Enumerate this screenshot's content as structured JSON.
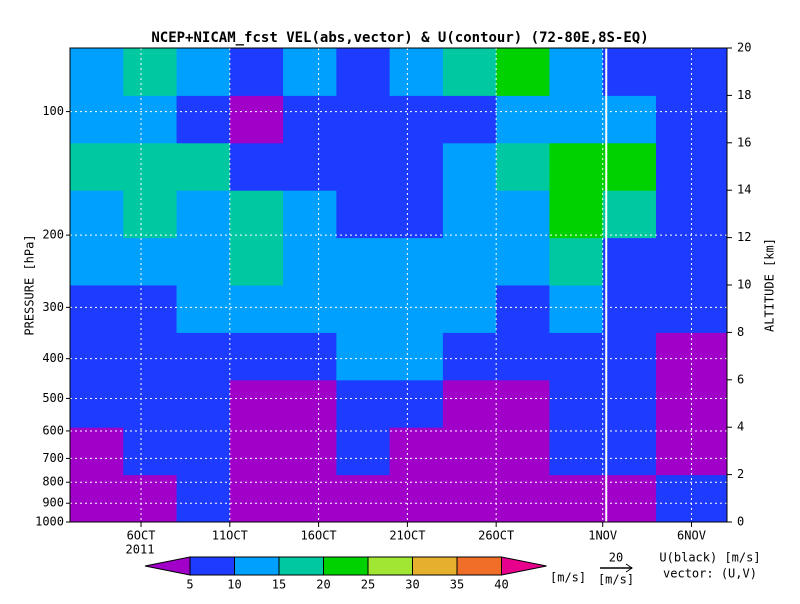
{
  "chart_data": {
    "type": "time-height",
    "title": "NCEP+NICAM_fcst VEL(abs,vector) & U(contour)   (72-80E,8S-EQ)",
    "ylabel": "PRESSURE [hPa]",
    "y2label": "ALTITUDE [km]",
    "year_label": "2011",
    "xlim": [
      1,
      38
    ],
    "xticks": [
      {
        "value": 5,
        "label": "6OCT"
      },
      {
        "value": 10,
        "label": "11OCT"
      },
      {
        "value": 15,
        "label": "16OCT"
      },
      {
        "value": 20,
        "label": "21OCT"
      },
      {
        "value": 25,
        "label": "26OCT"
      },
      {
        "value": 31,
        "label": "1NOV"
      },
      {
        "value": 36,
        "label": "6NOV"
      }
    ],
    "forecast_start": 31.2,
    "ylim": [
      1000,
      70
    ],
    "log_y": true,
    "yticks": [
      1000,
      900,
      800,
      700,
      600,
      500,
      400,
      300,
      200,
      100
    ],
    "y2lim": [
      0,
      20
    ],
    "y2ticks": [
      0,
      2,
      4,
      6,
      8,
      10,
      12,
      14,
      16,
      18,
      20
    ],
    "grid": true,
    "speed": {
      "x_edges": [
        1,
        4,
        7,
        10,
        13,
        16,
        19,
        22,
        25,
        28,
        31,
        34,
        38
      ],
      "y_edges": [
        0,
        2,
        4,
        6,
        8,
        10,
        12,
        14,
        16,
        18,
        20
      ],
      "values": [
        [
          3,
          4,
          6,
          3,
          4,
          3,
          3,
          4,
          3,
          4,
          4,
          6
        ],
        [
          4,
          6,
          7,
          3,
          3,
          7,
          4,
          3,
          4,
          6,
          7,
          4
        ],
        [
          6,
          8,
          6,
          3,
          3,
          7,
          8,
          4,
          3,
          7,
          8,
          3
        ],
        [
          8,
          9,
          7,
          6,
          9,
          11,
          12,
          8,
          6,
          9,
          9,
          4
        ],
        [
          9,
          9,
          10,
          12,
          12,
          13,
          12,
          10,
          9,
          11,
          8,
          6
        ],
        [
          10,
          11,
          13,
          16,
          12,
          11,
          10,
          11,
          12,
          16,
          9,
          6
        ],
        [
          13,
          17,
          12,
          15,
          11,
          9,
          8,
          13,
          14,
          21,
          17,
          8
        ],
        [
          17,
          18,
          16,
          9,
          7,
          6,
          9,
          12,
          15,
          22,
          20,
          9
        ],
        [
          11,
          12,
          8,
          4,
          6,
          7,
          6,
          9,
          11,
          12,
          10,
          8
        ],
        [
          13,
          16,
          12,
          8,
          10,
          8,
          12,
          16,
          20,
          11,
          7,
          6
        ]
      ]
    },
    "colorbar": {
      "levels": [
        5,
        10,
        15,
        20,
        25,
        30,
        35,
        40
      ],
      "colors": [
        "#a000c8",
        "#1e3cff",
        "#00a0ff",
        "#00c8a0",
        "#00d200",
        "#a0e632",
        "#e6af2d",
        "#f06e28",
        "#e6008c"
      ],
      "unit": "[m/s]"
    },
    "reference_vector": {
      "value": 20,
      "unit": "[m/s]"
    },
    "contour_note": "U(black) [m/s]",
    "vector_note": "vector: (U,V)"
  }
}
